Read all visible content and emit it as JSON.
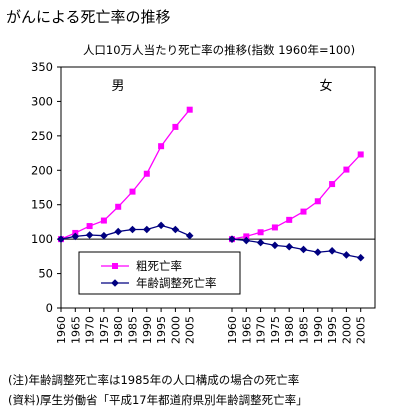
{
  "page_title": "がんによる死亡率の推移",
  "notes": {
    "note1": "(注)年齢調整死亡率は1985年の人口構成の場合の死亡率",
    "note2": "(資料)厚生労働省「平成17年都道府県別年齢調整死亡率」"
  },
  "chart_data": {
    "type": "line",
    "title": "人口10万人当たり死亡率の推移(指数 1960年=100)",
    "xlabel": "",
    "ylabel": "",
    "ylim": [
      0,
      350
    ],
    "yticks": [
      0,
      50,
      100,
      150,
      200,
      250,
      300,
      350
    ],
    "x": [
      "1960",
      "1965",
      "1970",
      "1975",
      "1980",
      "1985",
      "1990",
      "1995",
      "2000",
      "2005"
    ],
    "reference_line": 100,
    "grid": false,
    "legend_position": "lower-left",
    "panels": [
      {
        "label": "男",
        "series": [
          {
            "name": "粗死亡率",
            "color": "#ff00ff",
            "marker": "square",
            "values": [
              100,
              109,
              119,
              127,
              147,
              169,
              195,
              235,
              263,
              288
            ]
          },
          {
            "name": "年齢調整死亡率",
            "color": "#000080",
            "marker": "diamond",
            "values": [
              100,
              104,
              106,
              105,
              111,
              114,
              114,
              120,
              114,
              105
            ]
          }
        ]
      },
      {
        "label": "女",
        "series": [
          {
            "name": "粗死亡率",
            "color": "#ff00ff",
            "marker": "square",
            "values": [
              100,
              104,
              110,
              117,
              128,
              140,
              155,
              180,
              201,
              223
            ]
          },
          {
            "name": "年齢調整死亡率",
            "color": "#000080",
            "marker": "diamond",
            "values": [
              100,
              98,
              95,
              91,
              89,
              85,
              81,
              83,
              77,
              73
            ]
          }
        ]
      }
    ]
  }
}
